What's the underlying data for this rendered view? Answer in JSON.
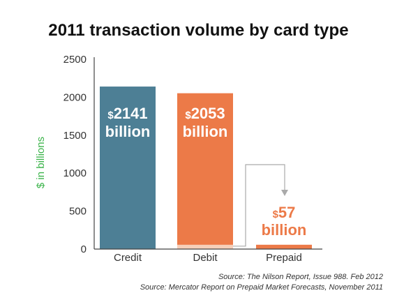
{
  "chart_data": {
    "type": "bar",
    "title": "2011 transaction volume by card type",
    "xlabel": "",
    "ylabel": "$ in billions",
    "ylim": [
      0,
      2500
    ],
    "yticks": [
      0,
      500,
      1000,
      1500,
      2000,
      2500
    ],
    "categories": [
      "Credit",
      "Debit",
      "Prepaid"
    ],
    "values": [
      2141,
      2053,
      57
    ],
    "bar_labels": [
      {
        "prefix": "$",
        "value": "2141",
        "unit": "billion"
      },
      {
        "prefix": "$",
        "value": "2053",
        "unit": "billion"
      },
      {
        "prefix": "$",
        "value": "57",
        "unit": "billion"
      }
    ],
    "highlight_segment": {
      "category": "Debit",
      "value": 57
    },
    "grid": false,
    "legend": "none"
  },
  "colors": {
    "credit": "#4d7f95",
    "debit": "#ec7a48",
    "prepaid": "#ec7a48",
    "highlight": "#f6cfb9",
    "ylabel": "#3cb44b",
    "axis": "#444444",
    "connector": "#aaaaaa"
  },
  "sources": [
    "Source: The Nilson Report, Issue 988. Feb 2012",
    "Source: Mercator Report on Prepaid Market Forecasts, November 2011"
  ]
}
